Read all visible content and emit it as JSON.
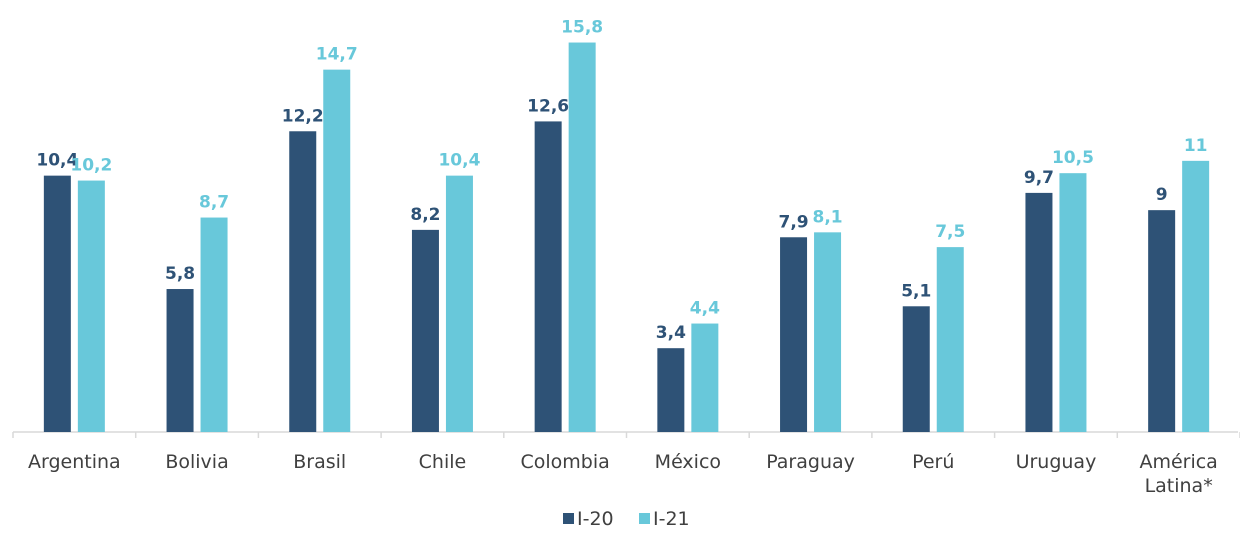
{
  "chart_data": {
    "type": "bar",
    "categories": [
      "Argentina",
      "Bolivia",
      "Brasil",
      "Chile",
      "Colombia",
      "México",
      "Paraguay",
      "Perú",
      "Uruguay",
      "América Latina*"
    ],
    "category_lines": [
      [
        "Argentina"
      ],
      [
        "Bolivia"
      ],
      [
        "Brasil"
      ],
      [
        "Chile"
      ],
      [
        "Colombia"
      ],
      [
        "México"
      ],
      [
        "Paraguay"
      ],
      [
        "Perú"
      ],
      [
        "Uruguay"
      ],
      [
        "América",
        "Latina*"
      ]
    ],
    "series": [
      {
        "name": "I-20",
        "color": "#2e5276",
        "values": [
          10.4,
          5.8,
          12.2,
          8.2,
          12.6,
          3.4,
          7.9,
          5.1,
          9.7,
          9
        ],
        "labels": [
          "10,4",
          "5,8",
          "12,2",
          "8,2",
          "12,6",
          "3,4",
          "7,9",
          "5,1",
          "9,7",
          "9"
        ]
      },
      {
        "name": "I-21",
        "color": "#68c8da",
        "values": [
          10.2,
          8.7,
          14.7,
          10.4,
          15.8,
          4.4,
          8.1,
          7.5,
          10.5,
          11
        ],
        "labels": [
          "10,2",
          "8,7",
          "14,7",
          "10,4",
          "15,8",
          "4,4",
          "8,1",
          "7,5",
          "10,5",
          "11"
        ]
      }
    ],
    "ylim": [
      0,
      16
    ],
    "grid": false,
    "legend": "bottom-center"
  }
}
